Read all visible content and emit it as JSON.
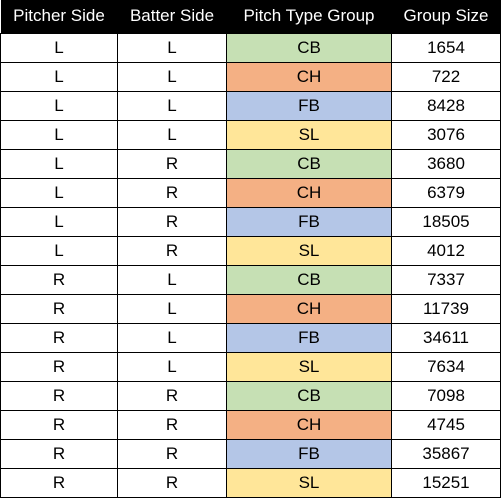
{
  "table": {
    "headers": [
      "Pitcher Side",
      "Batter Side",
      "Pitch Type Group",
      "Group Size"
    ],
    "rows": [
      [
        "L",
        "L",
        "CB",
        "1654"
      ],
      [
        "L",
        "L",
        "CH",
        "722"
      ],
      [
        "L",
        "L",
        "FB",
        "8428"
      ],
      [
        "L",
        "L",
        "SL",
        "3076"
      ],
      [
        "L",
        "R",
        "CB",
        "3680"
      ],
      [
        "L",
        "R",
        "CH",
        "6379"
      ],
      [
        "L",
        "R",
        "FB",
        "18505"
      ],
      [
        "L",
        "R",
        "SL",
        "4012"
      ],
      [
        "R",
        "L",
        "CB",
        "7337"
      ],
      [
        "R",
        "L",
        "CH",
        "11739"
      ],
      [
        "R",
        "L",
        "FB",
        "34611"
      ],
      [
        "R",
        "L",
        "SL",
        "7634"
      ],
      [
        "R",
        "R",
        "CB",
        "7098"
      ],
      [
        "R",
        "R",
        "CH",
        "4745"
      ],
      [
        "R",
        "R",
        "FB",
        "35867"
      ],
      [
        "R",
        "R",
        "SL",
        "15251"
      ]
    ],
    "pitch_type_colors": {
      "CB": "#c6e0b4",
      "CH": "#f4b084",
      "FB": "#b4c6e7",
      "SL": "#ffe699"
    },
    "header_background": "#000000",
    "header_text_color": "#ffffff"
  }
}
